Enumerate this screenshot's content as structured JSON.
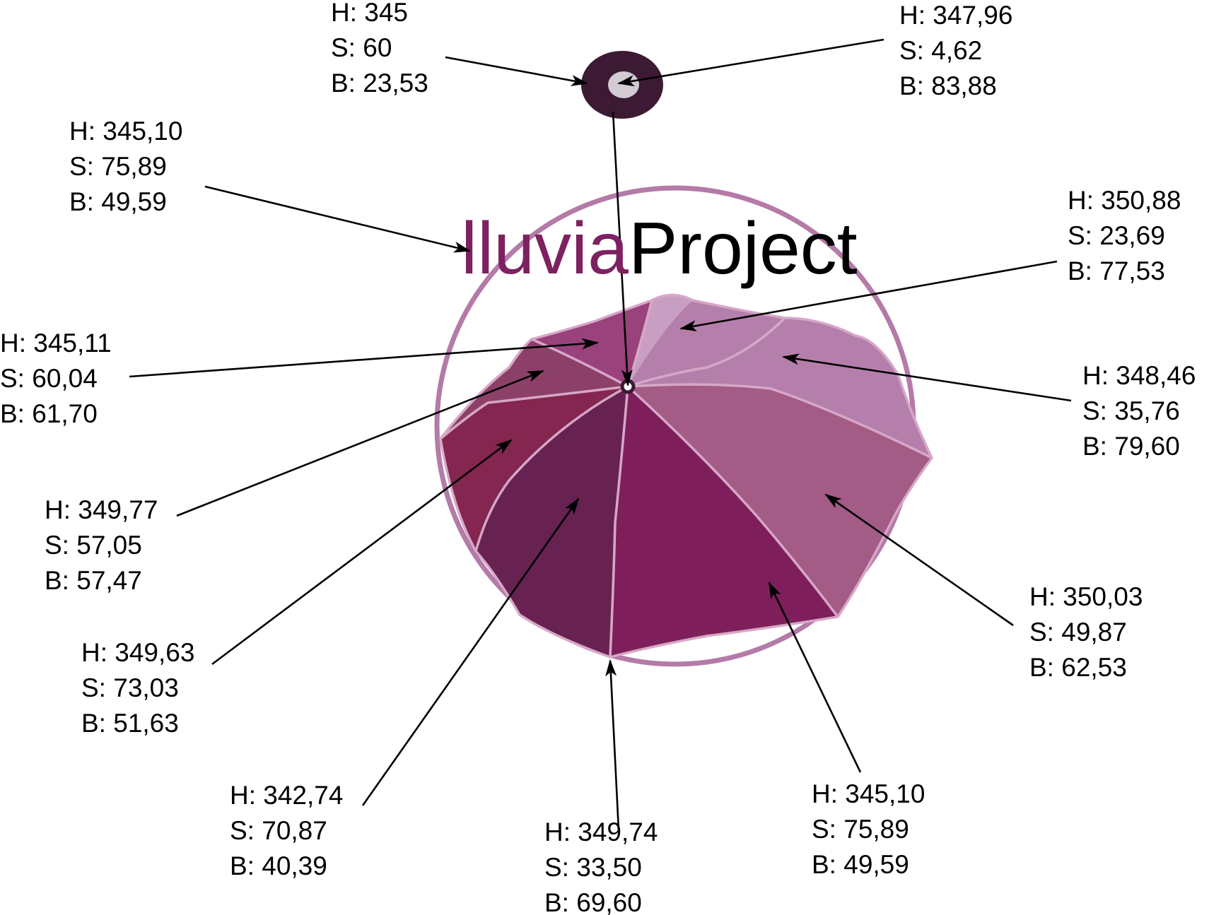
{
  "logo": {
    "part1": "lluvia",
    "part2": "Project",
    "part1_color": "#7d2160",
    "part2_color": "#000000"
  },
  "colors": {
    "ring": "#b47aa8",
    "tip_outer": "#3d1a33",
    "tip_inner": "#d3cbd2",
    "panel_light": "#c89fc2",
    "panel_light_mid": "#b57fab",
    "panel_mid": "#a35c86",
    "panel_front": "#7e1f5b",
    "panel_dark": "#672252",
    "panel_red": "#84264f",
    "panel_left_upper": "#8c4068",
    "panel_back": "#99427b"
  },
  "callouts": [
    {
      "id": "tip-outer",
      "h": "H: 345",
      "s": "S: 60",
      "b": "B: 23,53"
    },
    {
      "id": "tip-inner",
      "h": "H: 347,96",
      "s": "S: 4,62",
      "b": "B: 83,88"
    },
    {
      "id": "logo-text",
      "h": "H: 345,10",
      "s": "S: 75,89",
      "b": "B: 49,59"
    },
    {
      "id": "panel-back",
      "h": "H: 345,11",
      "s": "S: 60,04",
      "b": "B: 61,70"
    },
    {
      "id": "panel-left-upper",
      "h": "H: 349,77",
      "s": "S: 57,05",
      "b": "B: 57,47"
    },
    {
      "id": "panel-red",
      "h": "H: 349,63",
      "s": "S: 73,03",
      "b": "B: 51,63"
    },
    {
      "id": "panel-dark",
      "h": "H: 342,74",
      "s": "S: 70,87",
      "b": "B: 40,39"
    },
    {
      "id": "ring",
      "h": "H: 349,74",
      "s": "S: 33,50",
      "b": "B: 69,60"
    },
    {
      "id": "panel-front",
      "h": "H: 345,10",
      "s": "S: 75,89",
      "b": "B: 49,59"
    },
    {
      "id": "panel-mid",
      "h": "H: 350,03",
      "s": "S: 49,87",
      "b": "B: 62,53"
    },
    {
      "id": "panel-light-mid",
      "h": "H: 348,46",
      "s": "S: 35,76",
      "b": "B: 79,60"
    },
    {
      "id": "panel-light",
      "h": "H: 350,88",
      "s": "S: 23,69",
      "b": "B: 77,53"
    }
  ]
}
